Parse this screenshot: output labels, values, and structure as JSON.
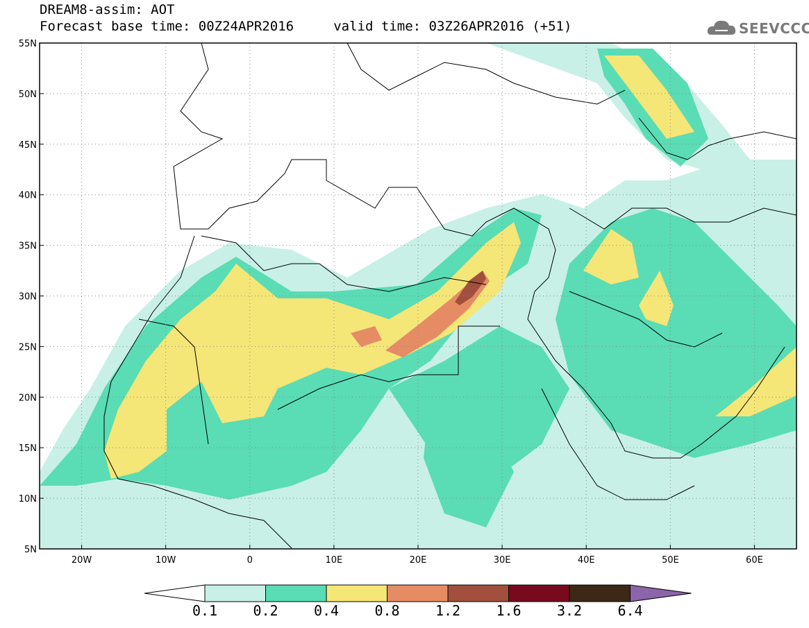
{
  "header": {
    "title": "DREAM8-assim: AOT",
    "subtitle": "Forecast base time: 00Z24APR2016     valid time: 03Z26APR2016 (+51)",
    "logo_text": "SEEVCCC"
  },
  "map": {
    "extent": {
      "lon": [
        -25,
        65
      ],
      "lat": [
        5,
        55
      ]
    },
    "lat_ticks": [
      {
        "v": 5,
        "label": "5N"
      },
      {
        "v": 10,
        "label": "10N"
      },
      {
        "v": 15,
        "label": "15N"
      },
      {
        "v": 20,
        "label": "20N"
      },
      {
        "v": 25,
        "label": "25N"
      },
      {
        "v": 30,
        "label": "30N"
      },
      {
        "v": 35,
        "label": "35N"
      },
      {
        "v": 40,
        "label": "40N"
      },
      {
        "v": 45,
        "label": "45N"
      },
      {
        "v": 50,
        "label": "50N"
      },
      {
        "v": 55,
        "label": "55N"
      }
    ],
    "lon_ticks": [
      {
        "v": -20,
        "label": "20W"
      },
      {
        "v": -10,
        "label": "10W"
      },
      {
        "v": 0,
        "label": "0"
      },
      {
        "v": 10,
        "label": "10E"
      },
      {
        "v": 20,
        "label": "20E"
      },
      {
        "v": 30,
        "label": "30E"
      },
      {
        "v": 40,
        "label": "40E"
      },
      {
        "v": 50,
        "label": "50E"
      },
      {
        "v": 60,
        "label": "60E"
      }
    ],
    "gridlines": "dotted"
  },
  "colorbar": {
    "colors": [
      "#c8f0e6",
      "#5adcb4",
      "#f5e678",
      "#e68c64",
      "#a0503c",
      "#780a1e",
      "#3c2814",
      "#8c64aa"
    ],
    "labels": [
      "0.1",
      "0.2",
      "0.4",
      "0.8",
      "1.2",
      "1.6",
      "3.2",
      "6.4"
    ]
  }
}
